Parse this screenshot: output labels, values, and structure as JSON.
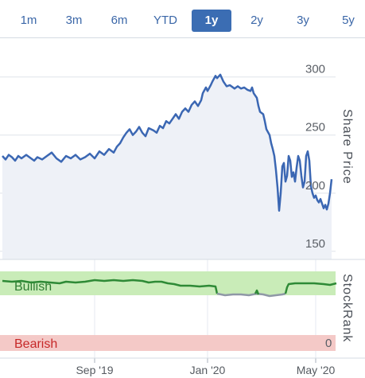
{
  "tabs": [
    {
      "label": "1m",
      "active": false
    },
    {
      "label": "3m",
      "active": false
    },
    {
      "label": "6m",
      "active": false
    },
    {
      "label": "YTD",
      "active": false
    },
    {
      "label": "1y",
      "active": true
    },
    {
      "label": "2y",
      "active": false
    },
    {
      "label": "3y",
      "active": false
    },
    {
      "label": "5y",
      "active": false
    }
  ],
  "chart_data": [
    {
      "type": "area",
      "ylabel": "Share Price",
      "ylim": [
        143,
        332
      ],
      "yticks": [
        150,
        200,
        250,
        300
      ],
      "xticks": [
        "Sep '19",
        "Jan '20",
        "May '20"
      ],
      "colors": {
        "line": "#3b67b3",
        "fill": "#eef1f7"
      },
      "series": [
        {
          "values": [
            [
              0,
              232
            ],
            [
              2,
              229
            ],
            [
              4,
              233
            ],
            [
              6,
              231
            ],
            [
              8,
              228
            ],
            [
              10,
              232
            ],
            [
              12,
              230
            ],
            [
              15,
              233
            ],
            [
              18,
              230
            ],
            [
              20,
              228
            ],
            [
              22,
              231
            ],
            [
              25,
              229
            ],
            [
              28,
              232
            ],
            [
              31,
              235
            ],
            [
              34,
              230
            ],
            [
              37,
              227
            ],
            [
              40,
              232
            ],
            [
              43,
              230
            ],
            [
              46,
              233
            ],
            [
              49,
              229
            ],
            [
              52,
              231
            ],
            [
              55,
              234
            ],
            [
              58,
              230
            ],
            [
              61,
              236
            ],
            [
              64,
              233
            ],
            [
              67,
              238
            ],
            [
              70,
              235
            ],
            [
              72,
              240
            ],
            [
              74,
              243
            ],
            [
              76,
              248
            ],
            [
              78,
              252
            ],
            [
              80,
              255
            ],
            [
              82,
              250
            ],
            [
              84,
              253
            ],
            [
              86,
              257
            ],
            [
              88,
              252
            ],
            [
              90,
              249
            ],
            [
              92,
              256
            ],
            [
              95,
              254
            ],
            [
              97,
              252
            ],
            [
              99,
              258
            ],
            [
              101,
              256
            ],
            [
              103,
              262
            ],
            [
              105,
              260
            ],
            [
              107,
              264
            ],
            [
              109,
              268
            ],
            [
              111,
              264
            ],
            [
              113,
              270
            ],
            [
              115,
              273
            ],
            [
              117,
              270
            ],
            [
              119,
              276
            ],
            [
              121,
              279
            ],
            [
              123,
              275
            ],
            [
              125,
              280
            ],
            [
              126,
              286
            ],
            [
              128,
              291
            ],
            [
              129,
              288
            ],
            [
              131,
              293
            ],
            [
              132,
              296
            ],
            [
              134,
              301
            ],
            [
              135,
              299
            ],
            [
              137,
              302
            ],
            [
              139,
              296
            ],
            [
              141,
              292
            ],
            [
              143,
              293
            ],
            [
              146,
              290
            ],
            [
              148,
              292
            ],
            [
              150,
              290
            ],
            [
              152,
              291
            ],
            [
              154,
              289
            ],
            [
              156,
              288
            ],
            [
              157,
              291
            ],
            [
              158,
              286
            ],
            [
              160,
              282
            ],
            [
              161,
              275
            ],
            [
              162,
              270
            ],
            [
              164,
              268
            ],
            [
              165,
              262
            ],
            [
              166,
              255
            ],
            [
              168,
              250
            ],
            [
              169,
              243
            ],
            [
              170,
              238
            ],
            [
              171,
              232
            ],
            [
              172,
              220
            ],
            [
              173,
              205
            ],
            [
              174,
              185
            ],
            [
              175,
              200
            ],
            [
              176,
              223
            ],
            [
              177,
              226
            ],
            [
              178,
              210
            ],
            [
              179,
              215
            ],
            [
              180,
              232
            ],
            [
              181,
              228
            ],
            [
              182,
              214
            ],
            [
              183,
              218
            ],
            [
              184,
              210
            ],
            [
              185,
              222
            ],
            [
              186,
              232
            ],
            [
              187,
              228
            ],
            [
              188,
              215
            ],
            [
              189,
              205
            ],
            [
              190,
              210
            ],
            [
              191,
              232
            ],
            [
              192,
              236
            ],
            [
              193,
              228
            ],
            [
              194,
              206
            ],
            [
              195,
              200
            ],
            [
              196,
              196
            ],
            [
              197,
              198
            ],
            [
              198,
              194
            ],
            [
              199,
              192
            ],
            [
              200,
              195
            ],
            [
              201,
              191
            ],
            [
              202,
              187
            ],
            [
              203,
              190
            ],
            [
              204,
              186
            ],
            [
              205,
              191
            ],
            [
              206,
              200
            ],
            [
              207,
              212
            ]
          ]
        }
      ]
    },
    {
      "type": "line",
      "ylabel": "StockRank",
      "ylim": [
        0,
        100
      ],
      "yticks": [
        0
      ],
      "zones": [
        {
          "label": "Bullish",
          "from": 70,
          "to": 100,
          "color": "#c9ecb8"
        },
        {
          "label": "Bearish",
          "from": 0,
          "to": 20,
          "color": "#f4c9c7"
        }
      ],
      "series": [
        {
          "color": "#2e8a36",
          "values": [
            [
              0,
              88
            ],
            [
              6,
              87
            ],
            [
              12,
              88
            ],
            [
              18,
              86
            ],
            [
              24,
              87
            ],
            [
              30,
              86
            ],
            [
              36,
              85
            ],
            [
              40,
              87
            ],
            [
              46,
              86
            ],
            [
              52,
              87
            ],
            [
              58,
              89
            ],
            [
              64,
              88
            ],
            [
              70,
              89
            ],
            [
              76,
              88
            ],
            [
              82,
              89
            ],
            [
              88,
              88
            ],
            [
              92,
              86
            ],
            [
              96,
              87
            ],
            [
              100,
              87
            ],
            [
              104,
              85
            ],
            [
              108,
              84
            ],
            [
              112,
              82
            ],
            [
              118,
              82
            ],
            [
              124,
              81
            ],
            [
              130,
              82
            ],
            [
              134,
              81
            ],
            [
              135,
              72
            ]
          ]
        },
        {
          "color": "#8f98a6",
          "values": [
            [
              135,
              72
            ],
            [
              140,
              70
            ],
            [
              145,
              71
            ],
            [
              150,
              71
            ],
            [
              155,
              70
            ],
            [
              160,
              72
            ],
            [
              164,
              71
            ],
            [
              168,
              69
            ],
            [
              172,
              70
            ],
            [
              176,
              71
            ],
            [
              178,
              72
            ]
          ]
        },
        {
          "color": "#2e8a36",
          "values": [
            [
              159,
              72
            ],
            [
              160,
              76
            ],
            [
              161,
              71
            ]
          ]
        },
        {
          "color": "#2e8a36",
          "values": [
            [
              178,
              72
            ],
            [
              179,
              80
            ],
            [
              180,
              84
            ],
            [
              184,
              85
            ],
            [
              190,
              85
            ],
            [
              196,
              85
            ],
            [
              202,
              84
            ],
            [
              206,
              83
            ],
            [
              210,
              85
            ]
          ]
        }
      ]
    }
  ]
}
